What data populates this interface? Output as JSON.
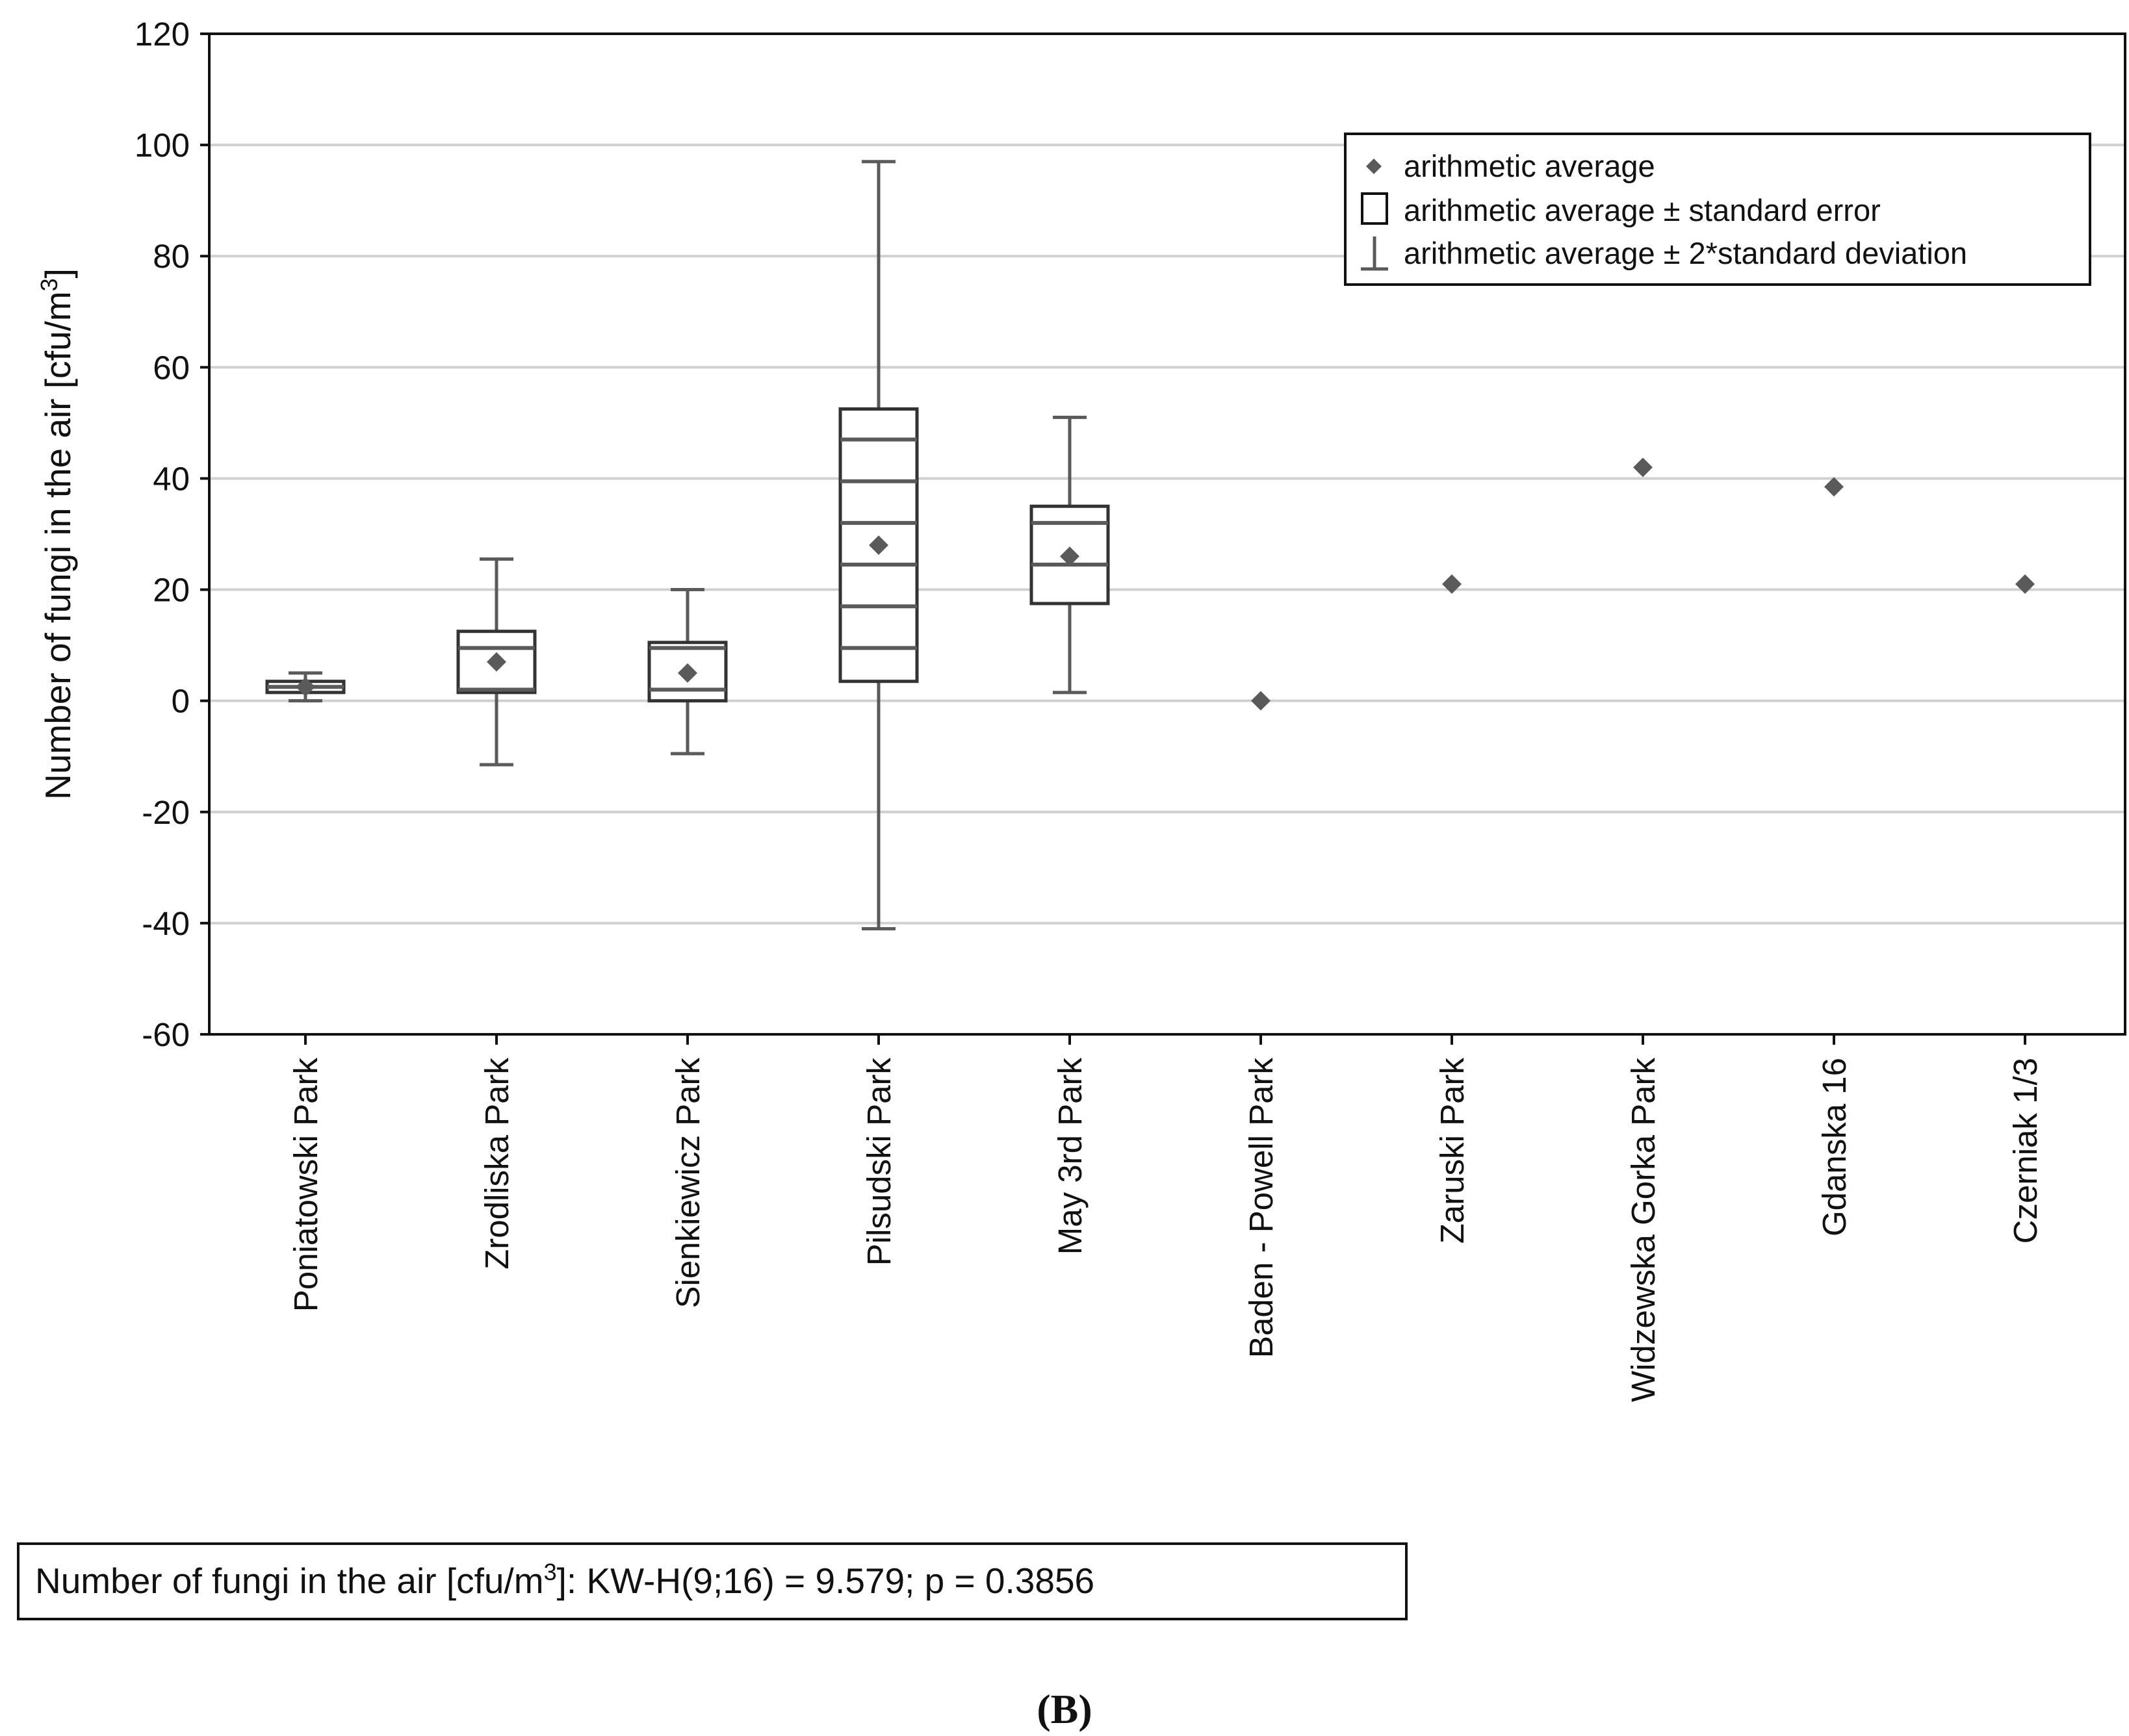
{
  "chart_data": {
    "type": "box",
    "ylabel": "Number of fungi in the air [cfu/m3]",
    "ylabel_parts": {
      "main": "Number of fungi in the air [cfu/m",
      "sup": "3",
      "end": "]"
    },
    "ylim": [
      -60,
      120
    ],
    "yticks": [
      -60,
      -40,
      -20,
      0,
      20,
      40,
      60,
      80,
      100,
      120
    ],
    "ytick_labels": [
      "-60",
      "-40",
      "-20",
      "0",
      "20",
      "40",
      "60",
      "80",
      "100",
      "120"
    ],
    "grid": true,
    "categories": [
      "Poniatowski Park",
      "Zrodliska Park",
      "Sienkiewicz Park",
      "Pilsudski Park",
      "May 3rd Park",
      "Baden - Powell Park",
      "Zaruski Park",
      "Widzewska Gorka Park",
      "Gdanska 16",
      "Czerniak 1/3"
    ],
    "series": [
      {
        "name": "Poniatowski Park",
        "mean": 2.5,
        "box": [
          1.5,
          3.5
        ],
        "whiskers": [
          0,
          5
        ],
        "lines": [
          2.5
        ]
      },
      {
        "name": "Zrodliska Park",
        "mean": 7,
        "box": [
          1.5,
          12.5
        ],
        "whiskers": [
          -11.5,
          25.5
        ],
        "lines": [
          2,
          9.5
        ]
      },
      {
        "name": "Sienkiewicz Park",
        "mean": 5,
        "box": [
          0,
          10.5
        ],
        "whiskers": [
          -9.5,
          20
        ],
        "lines": [
          2,
          9.5
        ]
      },
      {
        "name": "Pilsudski Park",
        "mean": 28,
        "box": [
          3.5,
          52.5
        ],
        "whiskers": [
          -41,
          97
        ],
        "lines": [
          9.5,
          17,
          24.5,
          32,
          39.5,
          47
        ]
      },
      {
        "name": "May 3rd Park",
        "mean": 26,
        "box": [
          17.5,
          35
        ],
        "whiskers": [
          1.5,
          51
        ],
        "lines": [
          24.5,
          32
        ]
      },
      {
        "name": "Baden - Powell Park",
        "mean": 0,
        "box": null,
        "whiskers": null,
        "lines": []
      },
      {
        "name": "Zaruski Park",
        "mean": 21,
        "box": null,
        "whiskers": null,
        "lines": []
      },
      {
        "name": "Widzewska Gorka Park",
        "mean": 42,
        "box": null,
        "whiskers": null,
        "lines": []
      },
      {
        "name": "Gdanska 16",
        "mean": 38.5,
        "box": null,
        "whiskers": null,
        "lines": []
      },
      {
        "name": "Czerniak 1/3",
        "mean": 21,
        "box": null,
        "whiskers": null,
        "lines": []
      }
    ],
    "legend": {
      "position": "top-right",
      "items": [
        "arithmetic average",
        "arithmetic average ± standard error",
        "arithmetic average ± 2*standard deviation"
      ]
    },
    "stat_box": {
      "prefix": "Number of fungi in the air [cfu/m",
      "sup": "3",
      "suffix": "]:  KW-H(9;16) = 9.579; p = 0.3856"
    },
    "panel_label": "(B)"
  },
  "colors": {
    "mark": "#5a5a5a",
    "grid": "#d0d0d0",
    "axis": "#111111"
  }
}
